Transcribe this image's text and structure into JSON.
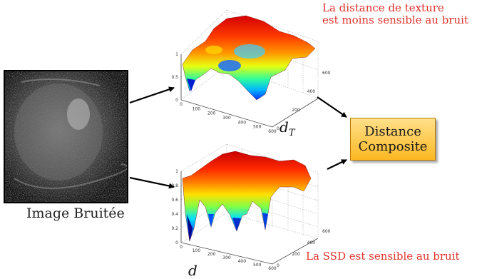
{
  "texture_note_line1": "La distance de texture",
  "texture_note_line2": "est moins sensible au bruit",
  "ssd_note": "La SSD est sensible au bruit",
  "image_caption": "Image Bruitée",
  "composite_line1": "Distance",
  "composite_line2": "Composite",
  "top_plot": {
    "var_main": "d",
    "var_sub": "T",
    "z_ticks": [
      "1",
      "0.5",
      "0"
    ],
    "x_ticks": [
      "0",
      "100",
      "200",
      "300",
      "400",
      "500",
      "600"
    ],
    "y_ticks": [
      "0",
      "200",
      "400",
      "600"
    ]
  },
  "bottom_plot": {
    "var_main": "d",
    "z_ticks": [
      "1",
      "0.8",
      "0.6",
      "0.4",
      "0.2",
      "0"
    ],
    "x_ticks": [
      "0",
      "100",
      "200",
      "300",
      "400",
      "500",
      "600"
    ],
    "y_ticks": [
      "0",
      "200",
      "400",
      "600"
    ]
  },
  "colors": {
    "note_red": "#e0342c",
    "composite_fill": "#fcb823",
    "arrow": "#000000"
  }
}
